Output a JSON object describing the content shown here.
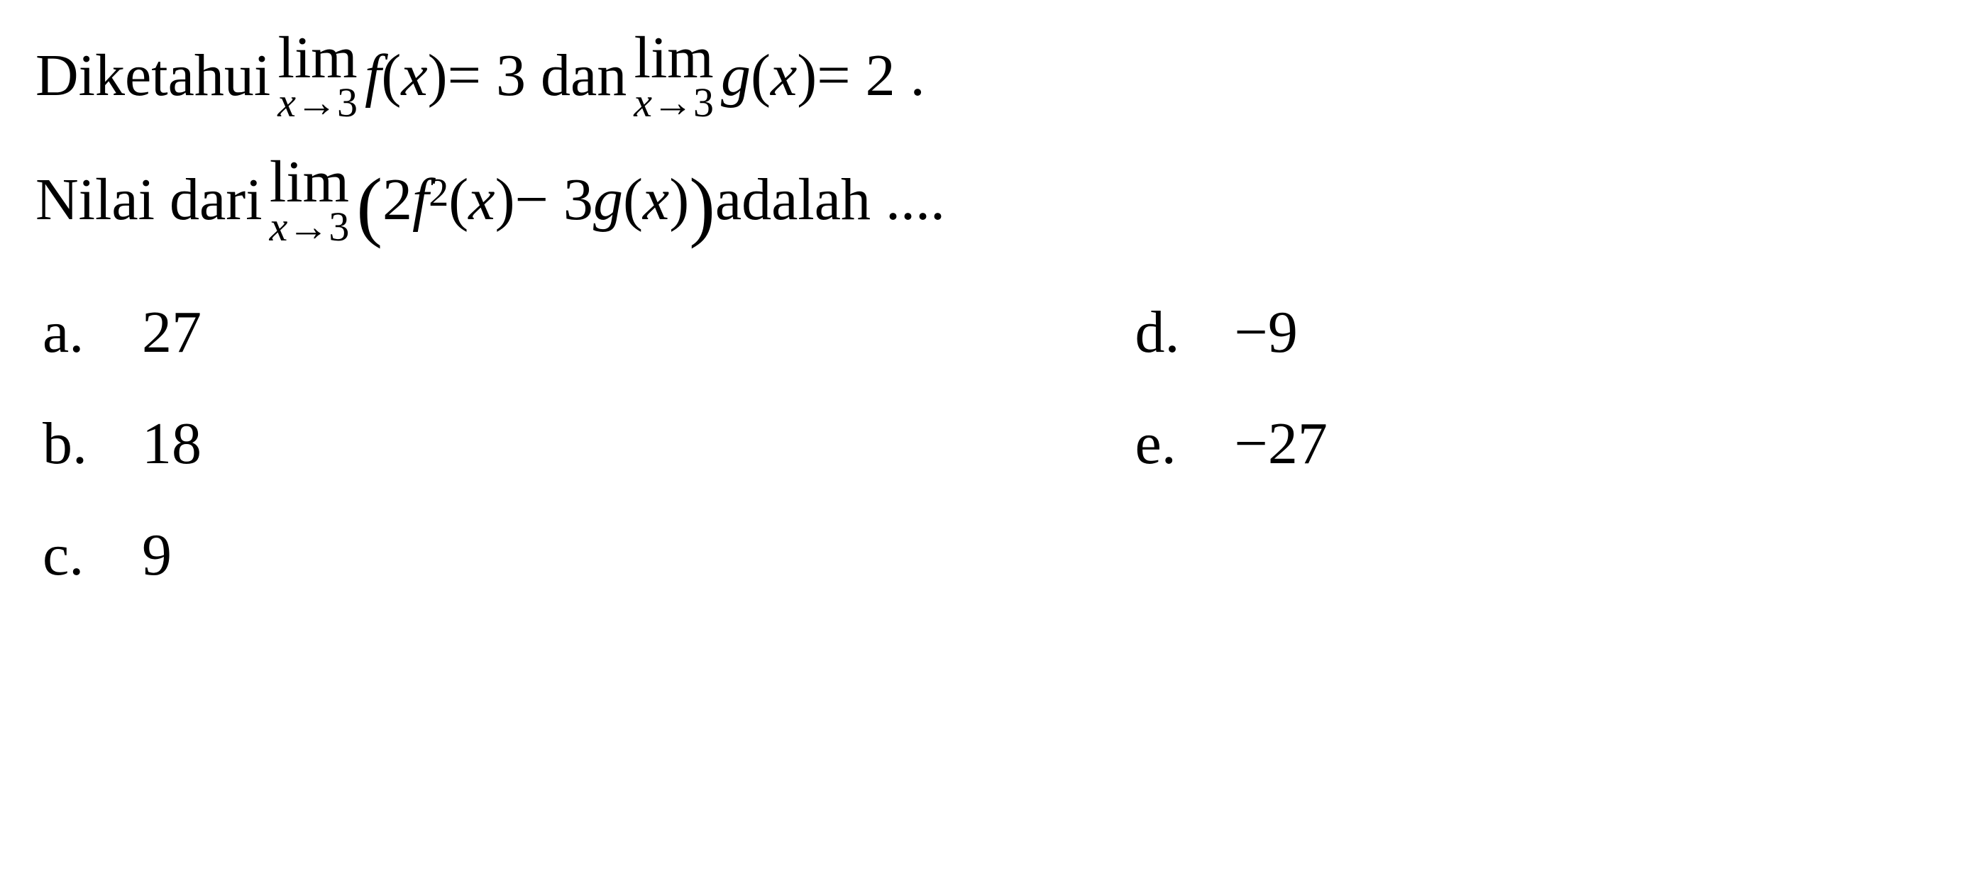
{
  "question": {
    "line1_part1": "Diketahui ",
    "line1_limit1_top": "lim",
    "line1_limit1_bottom_var": "x",
    "line1_limit1_bottom_arrow": "→",
    "line1_limit1_bottom_val": "3",
    "line1_fx": "f",
    "line1_fx_paren_open": "(",
    "line1_fx_var": "x",
    "line1_fx_paren_close": ")",
    "line1_eq1": " = 3  dan ",
    "line1_limit2_top": "lim",
    "line1_limit2_bottom_var": "x",
    "line1_limit2_bottom_arrow": "→",
    "line1_limit2_bottom_val": "3",
    "line1_gx": "g",
    "line1_gx_paren_open": "(",
    "line1_gx_var": "x",
    "line1_gx_paren_close": ")",
    "line1_eq2": " = 2 .",
    "line2_part1": "Nilai dari ",
    "line2_limit_top": "lim",
    "line2_limit_bottom_var": "x",
    "line2_limit_bottom_arrow": "→",
    "line2_limit_bottom_val": "3",
    "line2_paren_open": "(",
    "line2_coef1": "2",
    "line2_f": "f",
    "line2_sup": "2",
    "line2_f_paren_open": "(",
    "line2_f_var": "x",
    "line2_f_paren_close": ")",
    "line2_minus": " − 3",
    "line2_g": "g",
    "line2_g_paren_open": "(",
    "line2_g_var": "x",
    "line2_g_paren_close": ")",
    "line2_paren_close": ")",
    "line2_part2": " adalah ...."
  },
  "options": {
    "a_letter": "a.",
    "a_value": "27",
    "b_letter": "b.",
    "b_value": "18",
    "c_letter": "c.",
    "c_value": "9",
    "d_letter": "d.",
    "d_value": "−9",
    "e_letter": "e.",
    "e_value": "−27"
  },
  "styling": {
    "font_family": "Times New Roman, serif",
    "font_size_main": 84,
    "font_size_subscript": 58,
    "font_size_superscript": 56,
    "text_color": "#000000",
    "background_color": "#ffffff",
    "type": "math-multiple-choice"
  }
}
